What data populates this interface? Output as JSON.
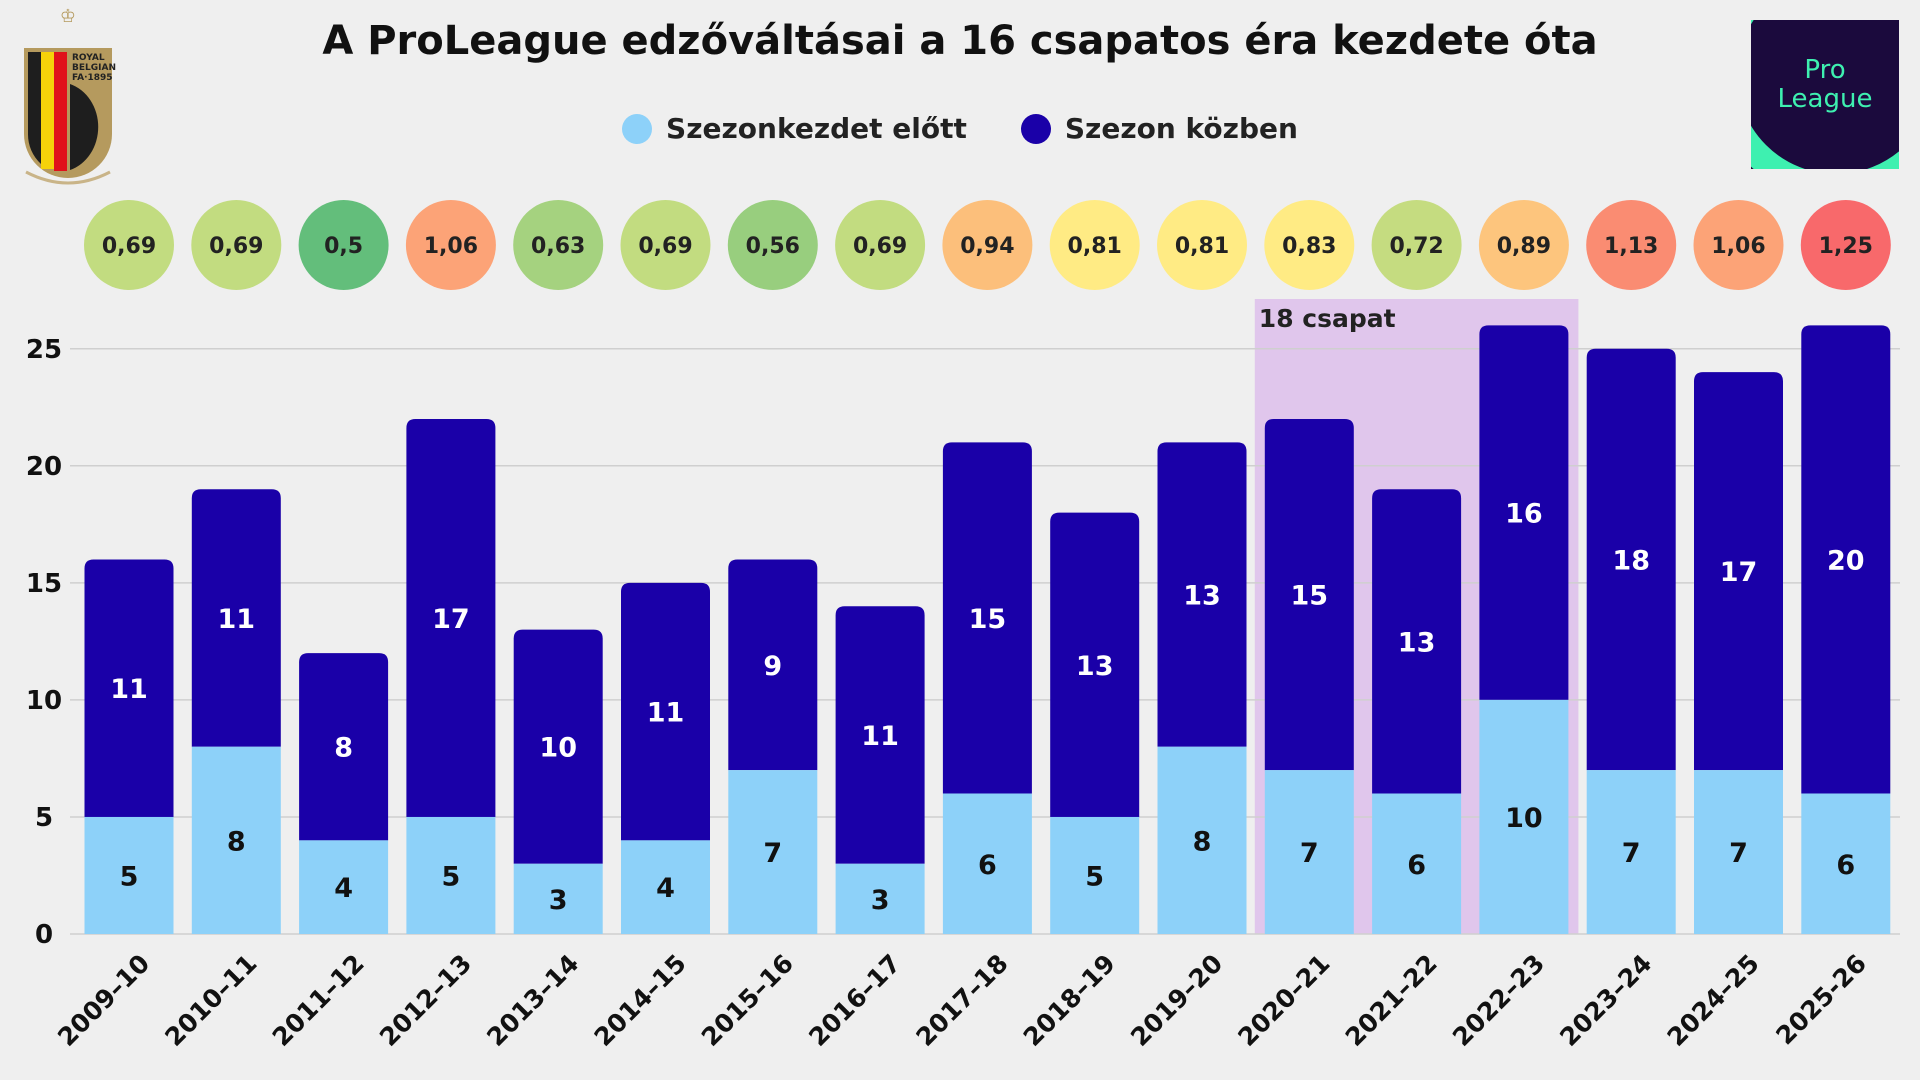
{
  "chart_data": {
    "type": "bar",
    "stacked": true,
    "title": "A ProLeague edzőváltásai a 16 csapatos éra kezdete óta",
    "categories": [
      "2009–10",
      "2010–11",
      "2011–12",
      "2012–13",
      "2013–14",
      "2014–15",
      "2015–16",
      "2016–17",
      "2017–18",
      "2018–19",
      "2019–20",
      "2020–21",
      "2021–22",
      "2022–23",
      "2023–24",
      "2024–25",
      "2025-26"
    ],
    "series": [
      {
        "name": "Szezonkezdet előtt",
        "color": "#8dd1f9",
        "values": [
          5,
          8,
          4,
          5,
          3,
          4,
          7,
          3,
          6,
          5,
          8,
          7,
          6,
          10,
          7,
          7,
          6
        ]
      },
      {
        "name": "Szezon közben",
        "color": "#1a00a8",
        "values": [
          11,
          11,
          8,
          17,
          10,
          11,
          9,
          11,
          15,
          13,
          13,
          15,
          13,
          16,
          18,
          17,
          20
        ]
      }
    ],
    "ratios": [
      "0,69",
      "0,69",
      "0,5",
      "1,06",
      "0,63",
      "0,69",
      "0,56",
      "0,69",
      "0,94",
      "0,81",
      "0,81",
      "0,83",
      "0,72",
      "0,89",
      "1,13",
      "1,06",
      "1,25"
    ],
    "ratio_colors": [
      "#c2dc80",
      "#c2dc80",
      "#63be7b",
      "#fca377",
      "#a5d27f",
      "#c2dc80",
      "#98ce7e",
      "#c2dc80",
      "#fcbf7b",
      "#ffeb84",
      "#ffeb84",
      "#ffeb84",
      "#c5dc80",
      "#fdc57d",
      "#fa8c72",
      "#fca377",
      "#f8696b"
    ],
    "ylim": [
      0,
      27
    ],
    "yticks": [
      0,
      5,
      10,
      15,
      20,
      25
    ],
    "grid": true,
    "legend_position": "top",
    "highlight": {
      "label": "18 csapat",
      "from": "2020–21",
      "to": "2022–23",
      "color": "#e0c6ec"
    }
  },
  "logos": {
    "left": "ROYAL BELGIAN FA·1895",
    "right": "Pro League"
  }
}
